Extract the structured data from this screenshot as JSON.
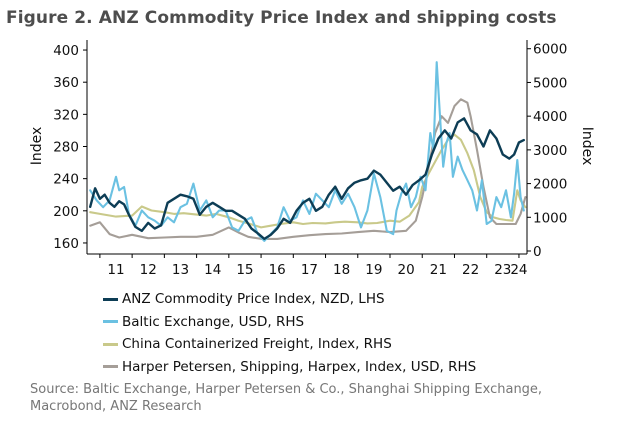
{
  "title": "Figure 2.  ANZ Commodity Price Index and shipping costs",
  "source": "Source: Baltic Exchange, Harper Petersen & Co., Shanghai Shipping Exchange, Macrobond, ANZ Research",
  "chart_data": {
    "type": "line",
    "title": "ANZ Commodity Price Index and shipping costs",
    "ylabel_left": "Index",
    "ylabel_right": "Index",
    "x_range": [
      2010.6,
      2024.25
    ],
    "ylim_left": [
      150,
      410
    ],
    "ylim_right": [
      0,
      6200
    ],
    "left_ticks": [
      160,
      200,
      240,
      280,
      320,
      360,
      400
    ],
    "right_ticks": [
      0,
      1000,
      2000,
      3000,
      4000,
      5000,
      6000
    ],
    "x_ticks": [
      {
        "label": "11",
        "x": 2011.5
      },
      {
        "label": "12",
        "x": 2012.5
      },
      {
        "label": "13",
        "x": 2013.5
      },
      {
        "label": "14",
        "x": 2014.5
      },
      {
        "label": "15",
        "x": 2015.5
      },
      {
        "label": "16",
        "x": 2016.5
      },
      {
        "label": "17",
        "x": 2017.5
      },
      {
        "label": "18",
        "x": 2018.5
      },
      {
        "label": "19",
        "x": 2019.5
      },
      {
        "label": "20",
        "x": 2020.5
      },
      {
        "label": "21",
        "x": 2021.5
      },
      {
        "label": "22",
        "x": 2022.5
      },
      {
        "label": "23",
        "x": 2023.5
      },
      {
        "label": "24",
        "x": 2024.0
      }
    ],
    "series": [
      {
        "name": "China Containerized Freight, Index, RHS",
        "axis": "right",
        "color": "#c9c98a",
        "x": [
          2010.7,
          2011.0,
          2011.5,
          2012.0,
          2012.3,
          2012.6,
          2013.0,
          2013.3,
          2013.6,
          2014.0,
          2014.3,
          2014.6,
          2015.0,
          2015.3,
          2015.6,
          2016.0,
          2016.3,
          2016.6,
          2017.0,
          2017.3,
          2017.6,
          2018.0,
          2018.3,
          2018.6,
          2019.0,
          2019.3,
          2019.6,
          2020.0,
          2020.3,
          2020.6,
          2020.9,
          2021.0,
          2021.2,
          2021.4,
          2021.6,
          2021.8,
          2022.0,
          2022.2,
          2022.4,
          2022.6,
          2022.8,
          2023.0,
          2023.2,
          2023.4,
          2023.6,
          2023.8,
          2023.95,
          2024.05,
          2024.2
        ],
        "values": [
          1150,
          1100,
          1020,
          1050,
          1320,
          1200,
          1150,
          1100,
          1120,
          1080,
          1050,
          1100,
          1000,
          900,
          820,
          700,
          750,
          800,
          850,
          800,
          830,
          820,
          850,
          870,
          850,
          820,
          830,
          900,
          870,
          1050,
          1450,
          1900,
          2300,
          2650,
          3000,
          3300,
          3450,
          3300,
          2900,
          2400,
          1600,
          1150,
          1000,
          950,
          920,
          900,
          1800,
          1500,
          1300
        ]
      },
      {
        "name": "Harper Petersen, Shipping, Harpex, Index, USD, RHS",
        "axis": "right",
        "color": "#a59e98",
        "x": [
          2010.7,
          2011.0,
          2011.3,
          2011.6,
          2012.0,
          2012.5,
          2013.0,
          2013.5,
          2014.0,
          2014.5,
          2015.0,
          2015.3,
          2015.6,
          2016.0,
          2016.5,
          2017.0,
          2017.5,
          2018.0,
          2018.5,
          2019.0,
          2019.5,
          2020.0,
          2020.5,
          2020.8,
          2021.0,
          2021.2,
          2021.4,
          2021.6,
          2021.8,
          2022.0,
          2022.2,
          2022.4,
          2022.5,
          2022.7,
          2022.9,
          2023.1,
          2023.3,
          2023.6,
          2023.9,
          2024.05,
          2024.2
        ],
        "values": [
          750,
          850,
          500,
          400,
          480,
          380,
          400,
          420,
          420,
          480,
          700,
          550,
          420,
          360,
          360,
          420,
          470,
          500,
          520,
          560,
          600,
          560,
          600,
          900,
          1600,
          2500,
          3500,
          4000,
          3800,
          4300,
          4500,
          4400,
          4000,
          3000,
          1900,
          1000,
          800,
          800,
          800,
          1100,
          1600
        ]
      },
      {
        "name": "Baltic Exchange, USD, RHS",
        "axis": "right",
        "color": "#6bc1e2",
        "x": [
          2010.7,
          2010.9,
          2011.1,
          2011.3,
          2011.5,
          2011.6,
          2011.75,
          2011.9,
          2012.1,
          2012.3,
          2012.5,
          2012.7,
          2012.9,
          2013.1,
          2013.3,
          2013.5,
          2013.7,
          2013.9,
          2014.1,
          2014.3,
          2014.5,
          2014.7,
          2014.9,
          2015.1,
          2015.3,
          2015.5,
          2015.7,
          2015.9,
          2016.1,
          2016.3,
          2016.5,
          2016.7,
          2016.9,
          2017.1,
          2017.3,
          2017.5,
          2017.7,
          2017.9,
          2018.1,
          2018.3,
          2018.5,
          2018.7,
          2018.9,
          2019.1,
          2019.3,
          2019.5,
          2019.7,
          2019.9,
          2020.1,
          2020.2,
          2020.35,
          2020.5,
          2020.65,
          2020.8,
          2020.95,
          2021.1,
          2021.25,
          2021.35,
          2021.45,
          2021.55,
          2021.65,
          2021.75,
          2021.85,
          2021.95,
          2022.1,
          2022.25,
          2022.4,
          2022.55,
          2022.7,
          2022.85,
          2023.0,
          2023.15,
          2023.3,
          2023.45,
          2023.6,
          2023.75,
          2023.85,
          2023.95,
          2024.05,
          2024.15
        ],
        "values": [
          1800,
          1500,
          1300,
          1500,
          2200,
          1800,
          1900,
          1100,
          750,
          1200,
          1000,
          900,
          750,
          1000,
          850,
          1300,
          1400,
          2000,
          1200,
          1500,
          1000,
          1200,
          1200,
          700,
          600,
          900,
          1000,
          500,
          300,
          500,
          700,
          1300,
          900,
          1000,
          1500,
          1100,
          1700,
          1500,
          1300,
          1800,
          1400,
          1700,
          1300,
          700,
          1200,
          2300,
          1600,
          600,
          500,
          1200,
          1700,
          2000,
          1300,
          1600,
          2200,
          1800,
          3500,
          3000,
          5600,
          4000,
          2500,
          3200,
          3500,
          2200,
          2800,
          2400,
          2100,
          1800,
          1200,
          2100,
          800,
          900,
          1600,
          1300,
          1800,
          1000,
          1700,
          2700,
          1600,
          1200
        ]
      },
      {
        "name": "ANZ Commodity Price Index, NZD, LHS",
        "axis": "left",
        "color": "#0d3d55",
        "x": [
          2010.7,
          2010.85,
          2011.0,
          2011.15,
          2011.3,
          2011.45,
          2011.6,
          2011.75,
          2011.9,
          2012.1,
          2012.3,
          2012.5,
          2012.7,
          2012.9,
          2013.1,
          2013.3,
          2013.5,
          2013.7,
          2013.9,
          2014.1,
          2014.3,
          2014.5,
          2014.7,
          2014.9,
          2015.1,
          2015.3,
          2015.5,
          2015.7,
          2015.9,
          2016.1,
          2016.3,
          2016.5,
          2016.7,
          2016.9,
          2017.1,
          2017.3,
          2017.5,
          2017.7,
          2017.9,
          2018.1,
          2018.3,
          2018.5,
          2018.7,
          2018.9,
          2019.1,
          2019.3,
          2019.5,
          2019.7,
          2019.9,
          2020.1,
          2020.3,
          2020.5,
          2020.7,
          2020.9,
          2021.1,
          2021.3,
          2021.5,
          2021.7,
          2021.9,
          2022.1,
          2022.3,
          2022.5,
          2022.7,
          2022.9,
          2023.1,
          2023.3,
          2023.5,
          2023.7,
          2023.85,
          2024.0,
          2024.15
        ],
        "values": [
          205,
          228,
          215,
          220,
          210,
          205,
          212,
          208,
          195,
          180,
          175,
          185,
          178,
          182,
          210,
          215,
          220,
          218,
          215,
          195,
          205,
          210,
          205,
          200,
          200,
          195,
          190,
          178,
          172,
          165,
          170,
          178,
          190,
          185,
          200,
          210,
          215,
          200,
          205,
          220,
          230,
          215,
          228,
          235,
          238,
          240,
          250,
          245,
          235,
          225,
          230,
          220,
          232,
          238,
          245,
          270,
          290,
          300,
          290,
          310,
          315,
          300,
          295,
          280,
          300,
          290,
          270,
          265,
          270,
          285,
          288
        ]
      }
    ]
  }
}
